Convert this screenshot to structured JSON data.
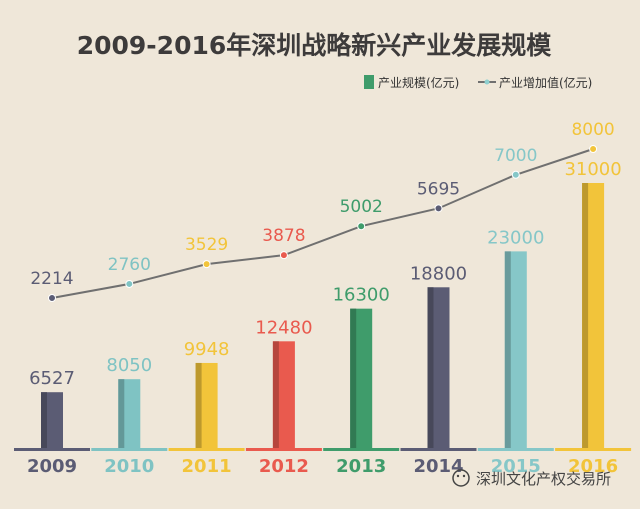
{
  "chart_data": {
    "type": "bar",
    "title": "2009-2016年深圳战略新兴产业发展规模",
    "categories": [
      "2009",
      "2010",
      "2011",
      "2012",
      "2013",
      "2014",
      "2015",
      "2016"
    ],
    "series": [
      {
        "name": "产业规模(亿元)",
        "type": "bar",
        "values": [
          6527,
          8050,
          9948,
          12480,
          16300,
          18800,
          23000,
          31000
        ]
      },
      {
        "name": "产业增加值(亿元)",
        "type": "line",
        "values": [
          2214,
          2760,
          3529,
          3878,
          5002,
          5695,
          7000,
          8000
        ]
      }
    ],
    "colors": [
      "#5b5c74",
      "#7fc3c3",
      "#f2c43a",
      "#e95a4e",
      "#3f9c6b",
      "#5b5c74",
      "#86c7c8",
      "#f2c43a"
    ],
    "line_color": "#707070",
    "legend_position": "top-right"
  },
  "watermark": {
    "text": "深圳文化产权交易所"
  }
}
